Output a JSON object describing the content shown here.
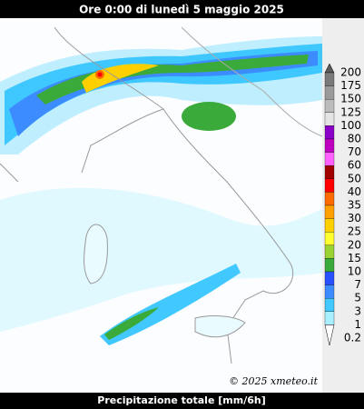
{
  "header": {
    "title": "Ore 0:00 di lunedì 5 maggio 2025"
  },
  "map": {
    "credit": "© 2025 xmeteo.it"
  },
  "legend": {
    "items": [
      {
        "label": "200",
        "color": "#5a5a5a"
      },
      {
        "label": "175",
        "color": "#7a7a7a"
      },
      {
        "label": "150",
        "color": "#9a9a9a"
      },
      {
        "label": "125",
        "color": "#bcbcbc"
      },
      {
        "label": "100",
        "color": "#e4e4e4"
      },
      {
        "label": "80",
        "color": "#8a00c8"
      },
      {
        "label": "70",
        "color": "#c000c0"
      },
      {
        "label": "60",
        "color": "#ff60ff"
      },
      {
        "label": "50",
        "color": "#a00000"
      },
      {
        "label": "40",
        "color": "#ff0000"
      },
      {
        "label": "35",
        "color": "#ff6a00"
      },
      {
        "label": "30",
        "color": "#ffa000"
      },
      {
        "label": "25",
        "color": "#ffd000"
      },
      {
        "label": "20",
        "color": "#ffff30"
      },
      {
        "label": "15",
        "color": "#9ad232"
      },
      {
        "label": "10",
        "color": "#3aaa3a"
      },
      {
        "label": "7",
        "color": "#2850ff"
      },
      {
        "label": "5",
        "color": "#3c8cff"
      },
      {
        "label": "3",
        "color": "#40c8ff"
      },
      {
        "label": "1",
        "color": "#a8f0ff"
      },
      {
        "label": "0.2",
        "color": "#ffffff"
      }
    ]
  },
  "footer": {
    "caption": "Precipitazione totale [mm/6h]"
  }
}
